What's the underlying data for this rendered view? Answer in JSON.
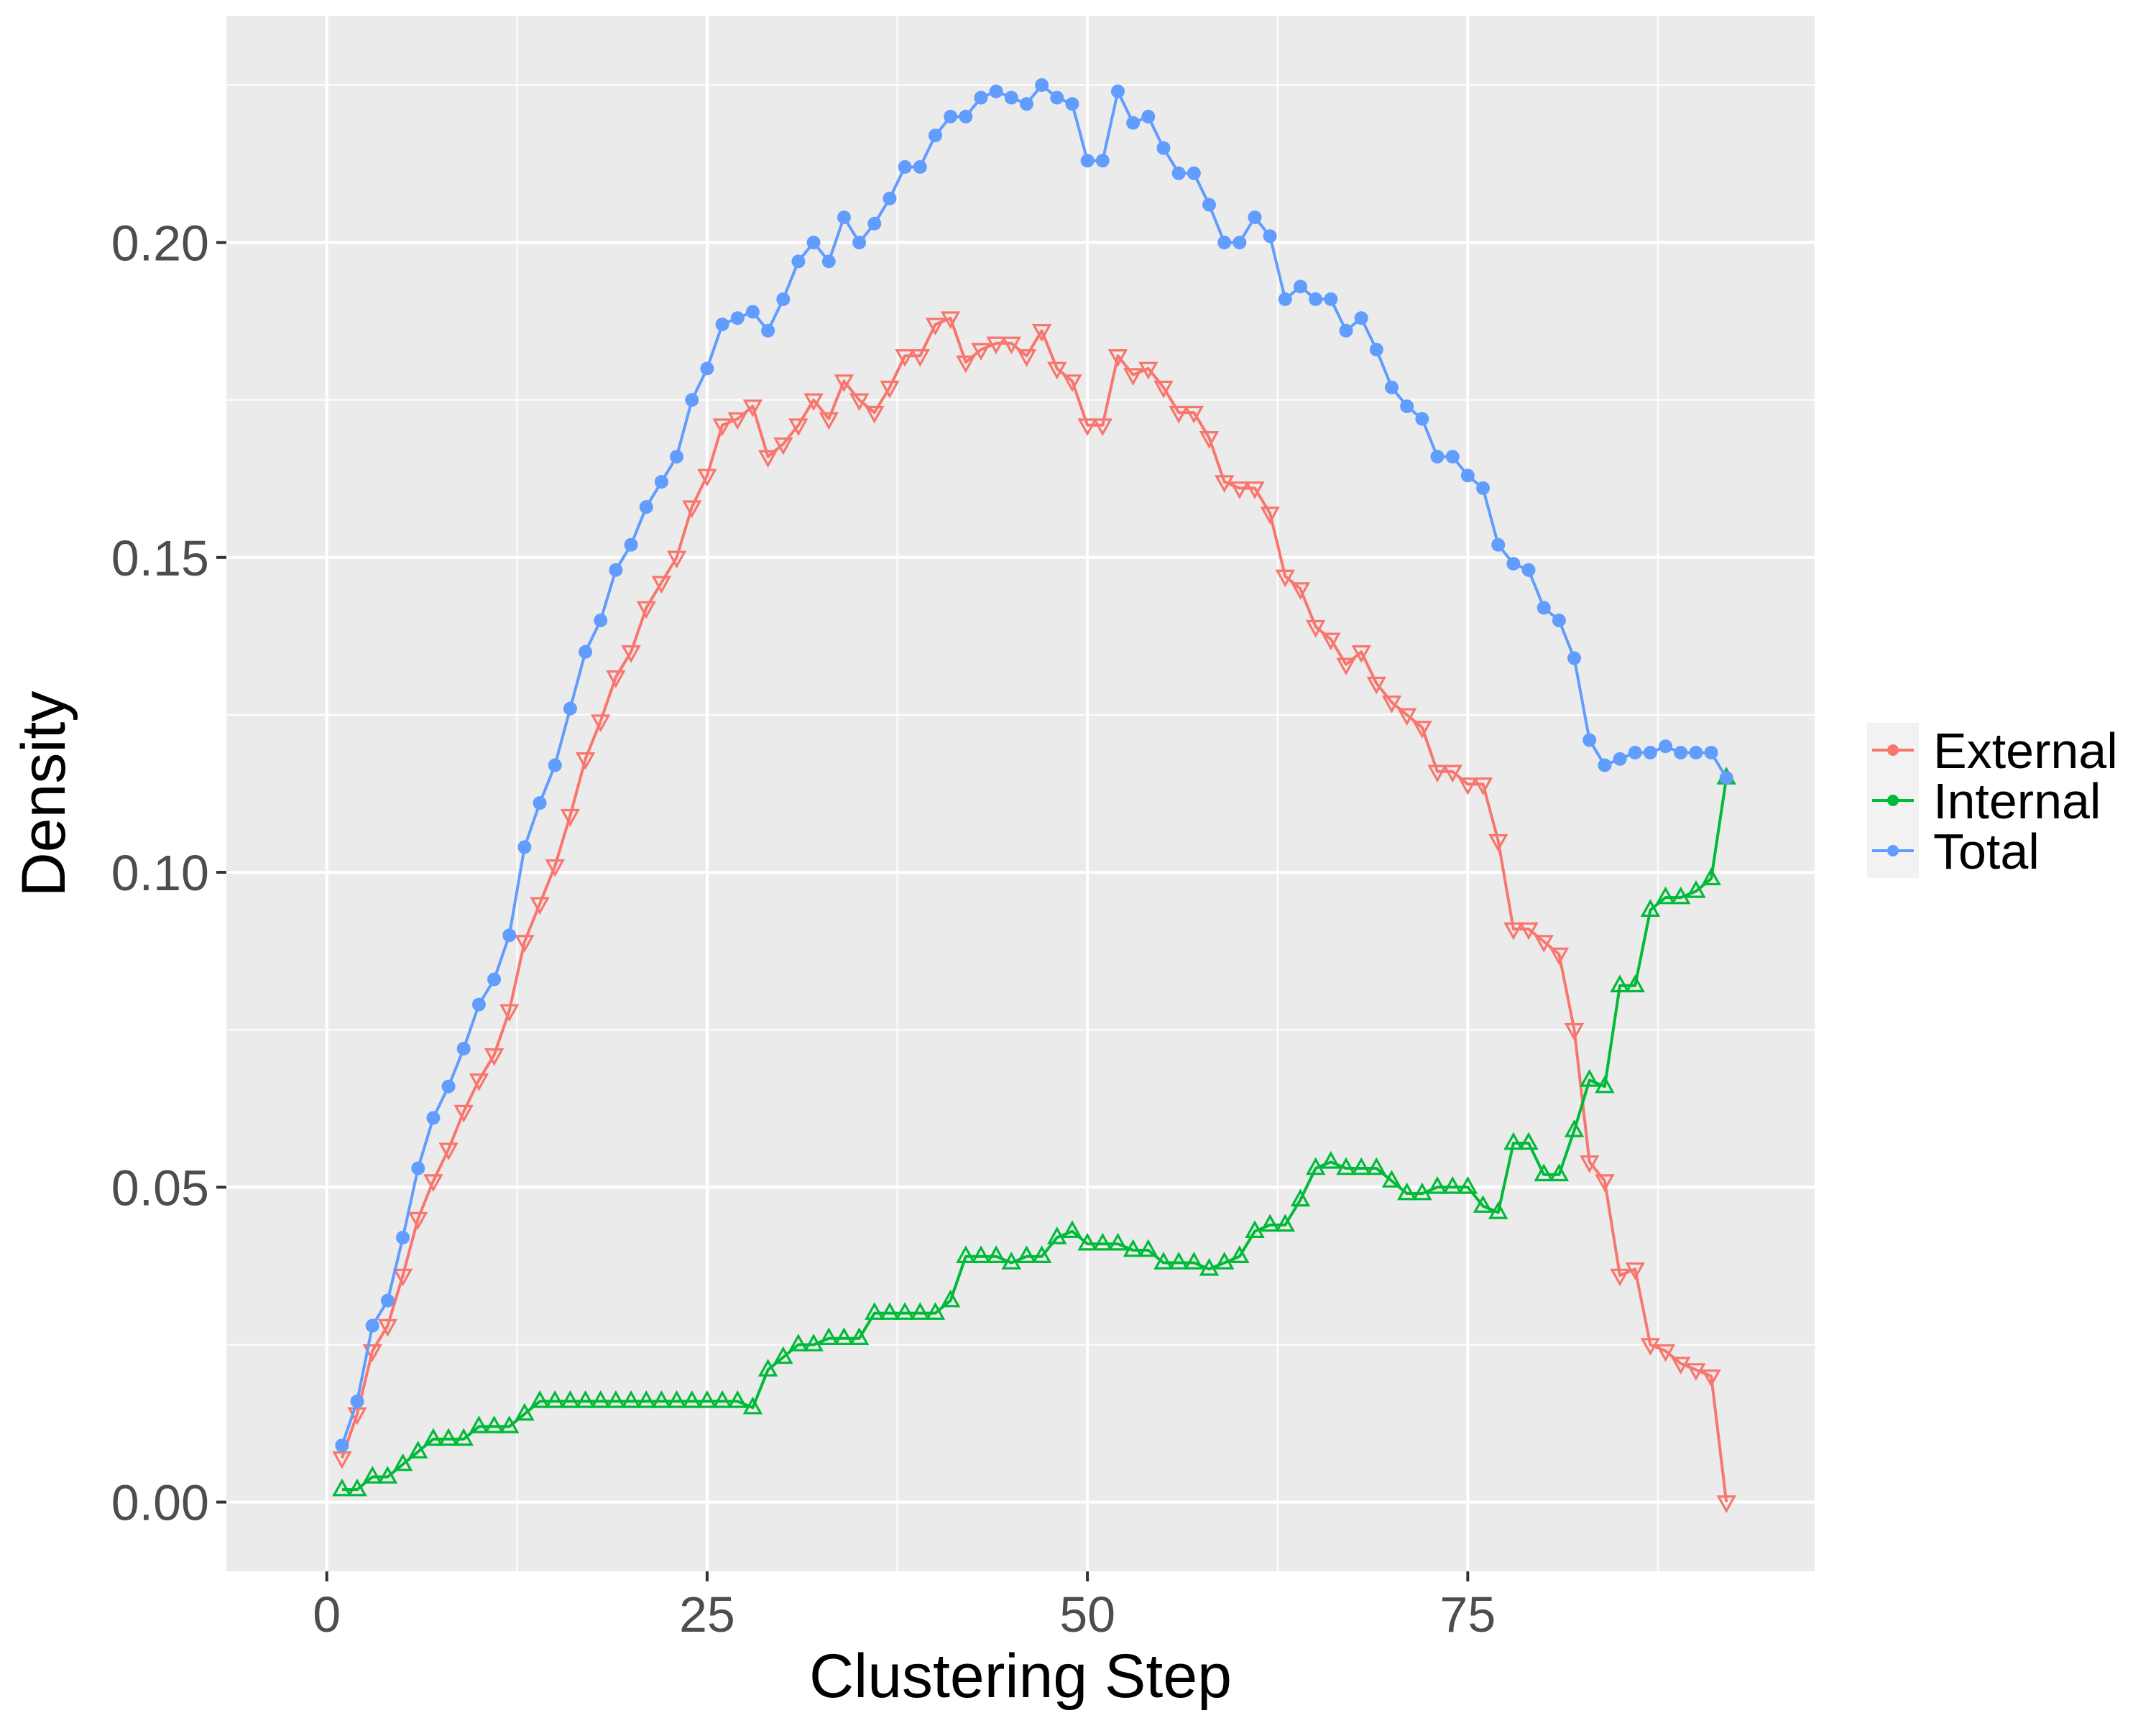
{
  "chart_data": {
    "type": "line",
    "xlabel": "Clustering Step",
    "ylabel": "Density",
    "xlim": [
      -6.6,
      97.8
    ],
    "ylim": [
      -0.011,
      0.236
    ],
    "x_ticks": [
      0,
      25,
      50,
      75
    ],
    "x_tick_labels": [
      "0",
      "25",
      "50",
      "75"
    ],
    "y_ticks": [
      0.0,
      0.05,
      0.1,
      0.15,
      0.2
    ],
    "y_tick_labels": [
      "0.00",
      "0.05",
      "0.10",
      "0.15",
      "0.20"
    ],
    "grid": true,
    "legend_position": "right",
    "x": [
      1,
      2,
      3,
      4,
      5,
      6,
      7,
      8,
      9,
      10,
      11,
      12,
      13,
      14,
      15,
      16,
      17,
      18,
      19,
      20,
      21,
      22,
      23,
      24,
      25,
      26,
      27,
      28,
      29,
      30,
      31,
      32,
      33,
      34,
      35,
      36,
      37,
      38,
      39,
      40,
      41,
      42,
      43,
      44,
      45,
      46,
      47,
      48,
      49,
      50,
      51,
      52,
      53,
      54,
      55,
      56,
      57,
      58,
      59,
      60,
      61,
      62,
      63,
      64,
      65,
      66,
      67,
      68,
      69,
      70,
      71,
      72,
      73,
      74,
      75,
      76,
      77,
      78,
      79,
      80,
      81,
      82,
      83,
      84,
      85,
      86,
      87,
      88,
      89,
      90,
      91,
      92
    ],
    "series": [
      {
        "name": "External",
        "color": "#F8766D",
        "marker": "triangle-down-open",
        "values": [
          0.007,
          0.014,
          0.024,
          0.028,
          0.036,
          0.045,
          0.051,
          0.056,
          0.062,
          0.067,
          0.071,
          0.078,
          0.089,
          0.095,
          0.101,
          0.109,
          0.118,
          0.124,
          0.131,
          0.135,
          0.142,
          0.146,
          0.15,
          0.158,
          0.163,
          0.171,
          0.172,
          0.174,
          0.166,
          0.168,
          0.171,
          0.175,
          0.172,
          0.178,
          0.175,
          0.173,
          0.177,
          0.182,
          0.182,
          0.187,
          0.188,
          0.181,
          0.183,
          0.184,
          0.184,
          0.182,
          0.186,
          0.18,
          0.178,
          0.171,
          0.171,
          0.182,
          0.179,
          0.18,
          0.177,
          0.173,
          0.173,
          0.169,
          0.162,
          0.161,
          0.161,
          0.157,
          0.147,
          0.145,
          0.139,
          0.137,
          0.133,
          0.135,
          0.13,
          0.127,
          0.125,
          0.123,
          0.116,
          0.116,
          0.114,
          0.114,
          0.105,
          0.091,
          0.091,
          0.089,
          0.087,
          0.075,
          0.054,
          0.051,
          0.036,
          0.037,
          0.025,
          0.024,
          0.022,
          0.021,
          0.02,
          0.0
        ]
      },
      {
        "name": "Internal",
        "color": "#00BA38",
        "marker": "triangle-up-open",
        "values": [
          0.002,
          0.002,
          0.004,
          0.004,
          0.006,
          0.008,
          0.01,
          0.01,
          0.01,
          0.012,
          0.012,
          0.012,
          0.014,
          0.016,
          0.016,
          0.016,
          0.016,
          0.016,
          0.016,
          0.016,
          0.016,
          0.016,
          0.016,
          0.016,
          0.016,
          0.016,
          0.016,
          0.015,
          0.021,
          0.023,
          0.025,
          0.025,
          0.026,
          0.026,
          0.026,
          0.03,
          0.03,
          0.03,
          0.03,
          0.03,
          0.032,
          0.039,
          0.039,
          0.039,
          0.038,
          0.039,
          0.039,
          0.042,
          0.043,
          0.041,
          0.041,
          0.041,
          0.04,
          0.04,
          0.038,
          0.038,
          0.038,
          0.037,
          0.038,
          0.039,
          0.043,
          0.044,
          0.044,
          0.048,
          0.053,
          0.054,
          0.053,
          0.053,
          0.053,
          0.051,
          0.049,
          0.049,
          0.05,
          0.05,
          0.05,
          0.047,
          0.046,
          0.057,
          0.057,
          0.052,
          0.052,
          0.059,
          0.067,
          0.066,
          0.082,
          0.082,
          0.094,
          0.096,
          0.096,
          0.097,
          0.099,
          0.115
        ]
      },
      {
        "name": "Total",
        "color": "#619CFF",
        "marker": "circle-filled",
        "values": [
          0.009,
          0.016,
          0.028,
          0.032,
          0.042,
          0.053,
          0.061,
          0.066,
          0.072,
          0.079,
          0.083,
          0.09,
          0.104,
          0.111,
          0.117,
          0.126,
          0.135,
          0.14,
          0.148,
          0.152,
          0.158,
          0.162,
          0.166,
          0.175,
          0.18,
          0.187,
          0.188,
          0.189,
          0.186,
          0.191,
          0.197,
          0.2,
          0.197,
          0.204,
          0.2,
          0.203,
          0.207,
          0.212,
          0.212,
          0.217,
          0.22,
          0.22,
          0.223,
          0.224,
          0.223,
          0.222,
          0.225,
          0.223,
          0.222,
          0.213,
          0.213,
          0.224,
          0.219,
          0.22,
          0.215,
          0.211,
          0.211,
          0.206,
          0.2,
          0.2,
          0.204,
          0.201,
          0.191,
          0.193,
          0.191,
          0.191,
          0.186,
          0.188,
          0.183,
          0.177,
          0.174,
          0.172,
          0.166,
          0.166,
          0.163,
          0.161,
          0.152,
          0.149,
          0.148,
          0.142,
          0.14,
          0.134,
          0.121,
          0.117,
          0.118,
          0.119,
          0.119,
          0.12,
          0.119,
          0.119,
          0.119,
          0.115
        ]
      }
    ]
  }
}
